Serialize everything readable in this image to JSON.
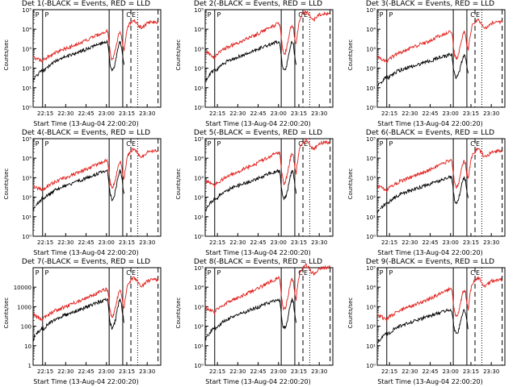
{
  "chart_data": {
    "type": "line",
    "x_ticks": [
      "22:15",
      "22:30",
      "22:45",
      "23:00",
      "23:15",
      "23:30"
    ],
    "x_tick_minutes": [
      15,
      30,
      45,
      60,
      75,
      90
    ],
    "xlim_minutes": [
      6,
      100
    ],
    "ylabel": "Counts/sec",
    "xlabel": "Start Time (13-Aug-04 22:00:20)",
    "y_scale": "log",
    "ylim": [
      1,
      100000
    ],
    "line_markers": {
      "solid": [
        13,
        62,
        72
      ],
      "dashed": [
        78,
        98
      ],
      "dotted": [
        83
      ]
    },
    "annotations": [
      "P",
      "P",
      "C",
      "E"
    ],
    "annotation_minutes": [
      7,
      14,
      74,
      78
    ],
    "panels": [
      {
        "title": "Det 1(-BLACK = Events, RED = LLD",
        "y_ticks": [
          "10⁰",
          "10¹",
          "10²",
          "10³",
          "10⁴",
          "10⁵"
        ],
        "red_level": 1.0,
        "black_level": 1.0
      },
      {
        "title": "Det 2(-BLACK = Events, RED = LLD",
        "y_ticks": [
          "10⁰",
          "10¹",
          "10²",
          "10³",
          "10⁴",
          "10⁵"
        ],
        "red_level": 1.1,
        "black_level": 1.0
      },
      {
        "title": "Det 3(-BLACK = Events, RED = LLD",
        "y_ticks": [
          "10⁰",
          "10¹",
          "10²",
          "10³",
          "10⁴",
          "10⁵"
        ],
        "red_level": 1.0,
        "black_level": 0.8
      },
      {
        "title": "Det 4(-BLACK = Events, RED = LLD",
        "y_ticks": [
          "10⁰",
          "10¹",
          "10²",
          "10³",
          "10⁴",
          "10⁵"
        ],
        "red_level": 1.0,
        "black_level": 1.0
      },
      {
        "title": "Det 5(-BLACK = Events, RED = LLD",
        "y_ticks": [
          "10⁰",
          "10¹",
          "10²",
          "10³",
          "10⁴",
          "10⁵"
        ],
        "red_level": 1.1,
        "black_level": 1.0
      },
      {
        "title": "Det 6(-BLACK = Events, RED = LLD",
        "y_ticks": [
          "10⁰",
          "10¹",
          "10²",
          "10³",
          "10⁴",
          "10⁵"
        ],
        "red_level": 1.0,
        "black_level": 0.9
      },
      {
        "title": "Det 7(-BLACK = Events, RED = LLD",
        "y_ticks": [
          "1",
          "10",
          "100",
          "1000",
          "10000"
        ],
        "red_level": 1.0,
        "black_level": 1.0
      },
      {
        "title": "Det 8(-BLACK = Events, RED = LLD",
        "y_ticks": [
          "10⁰",
          "10¹",
          "10²",
          "10³",
          "10⁴",
          "10⁵"
        ],
        "red_level": 1.15,
        "black_level": 1.0
      },
      {
        "title": "Det 9(-BLACK = Events, RED = LLD",
        "y_ticks": [
          "10⁰",
          "10¹",
          "10²",
          "10³",
          "10⁴",
          "10⁵"
        ],
        "red_level": 1.0,
        "black_level": 0.85
      }
    ],
    "red_series_minutes": [
      6,
      8,
      10,
      12,
      13,
      14,
      16,
      18,
      20,
      22,
      24,
      26,
      28,
      30,
      32,
      34,
      36,
      38,
      40,
      42,
      44,
      46,
      48,
      50,
      52,
      54,
      56,
      58,
      60,
      61,
      62,
      63,
      64,
      65,
      66,
      67,
      68,
      69,
      70,
      71,
      72,
      73,
      74,
      75,
      76,
      78,
      80,
      82,
      84,
      86,
      88,
      90,
      92,
      94,
      96,
      98
    ],
    "red_series_counts": [
      400,
      330,
      280,
      240,
      210,
      280,
      340,
      420,
      520,
      600,
      700,
      780,
      900,
      1000,
      1150,
      1300,
      1500,
      1700,
      1900,
      2100,
      2500,
      2900,
      3300,
      3900,
      4500,
      5200,
      6000,
      7000,
      8000,
      7000,
      1500,
      500,
      300,
      350,
      600,
      1200,
      2500,
      5000,
      7000,
      5000,
      1500,
      800,
      3000,
      8000,
      15000,
      22000,
      30000,
      24000,
      14000,
      12000,
      15000,
      20000,
      22000,
      23000,
      23000,
      23000
    ],
    "black_series_minutes": [
      6,
      7,
      8,
      13,
      14,
      16,
      18,
      20,
      22,
      24,
      26,
      28,
      30,
      32,
      34,
      36,
      38,
      40,
      42,
      44,
      46,
      48,
      50,
      52,
      54,
      56,
      58,
      60,
      61,
      62,
      63,
      64,
      65,
      66,
      67,
      68,
      69,
      70,
      71,
      72,
      73
    ],
    "black_series_counts": [
      20,
      30,
      35,
      90,
      70,
      110,
      140,
      180,
      220,
      260,
      300,
      340,
      380,
      430,
      480,
      550,
      620,
      700,
      780,
      880,
      1000,
      1150,
      1300,
      1500,
      1700,
      1900,
      2100,
      2300,
      2000,
      400,
      120,
      80,
      90,
      140,
      300,
      700,
      1500,
      2200,
      1500,
      400,
      150
    ]
  }
}
